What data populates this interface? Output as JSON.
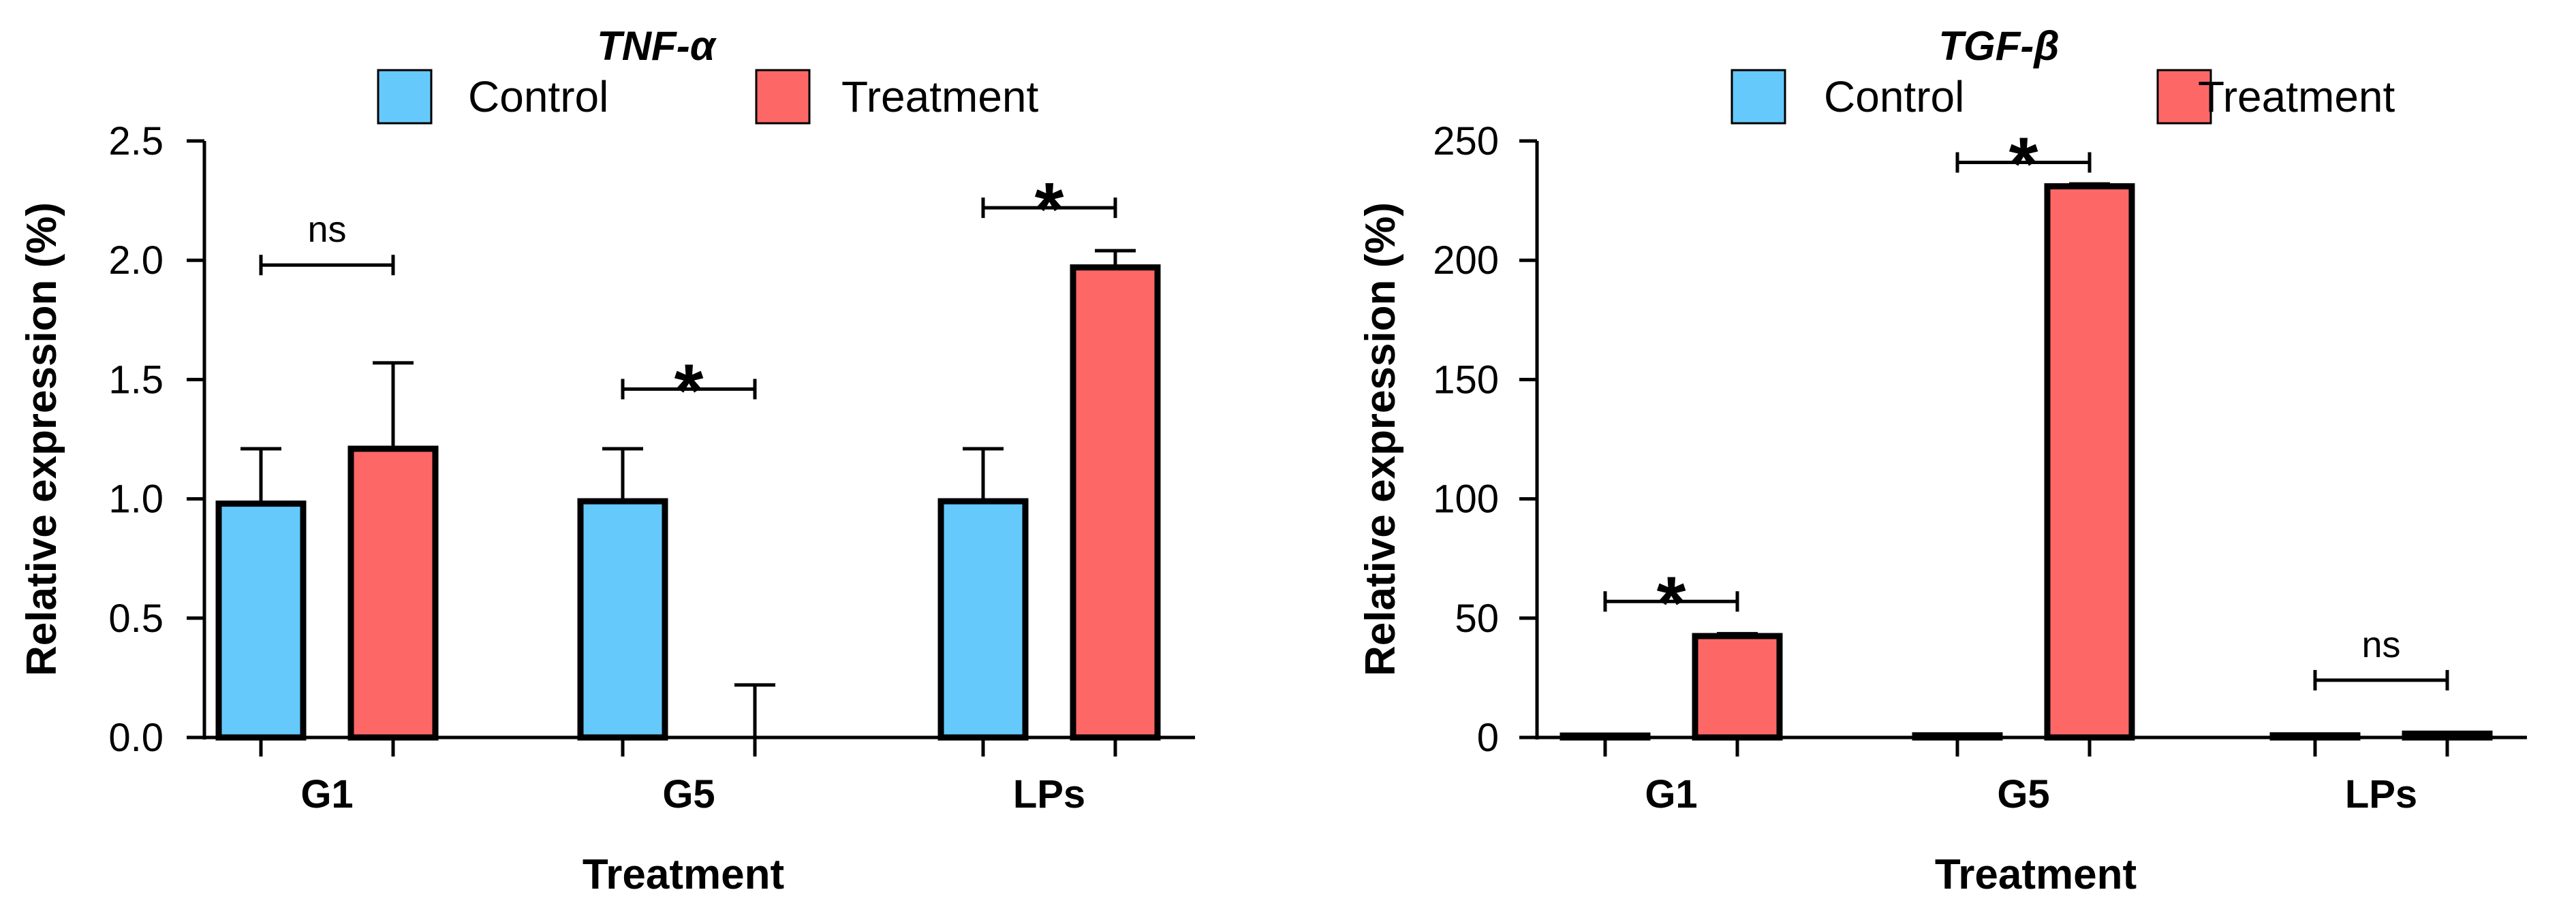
{
  "colors": {
    "control": "#66c9fb",
    "treatment": "#fd6867",
    "stroke": "#000000"
  },
  "legend": {
    "control": "Control",
    "treatment": "Treatment"
  },
  "chart_data": [
    {
      "type": "bar",
      "title": "TNF-α",
      "xlabel": "Treatment",
      "ylabel": "Relative expression (%)",
      "categories": [
        "G1",
        "G5",
        "LPs"
      ],
      "ylim": [
        0,
        2.5
      ],
      "yticks": [
        0.0,
        0.5,
        1.0,
        1.5,
        2.0,
        2.5
      ],
      "ytick_labels": [
        "0.0",
        "0.5",
        "1.0",
        "1.5",
        "2.0",
        "2.5"
      ],
      "series": [
        {
          "name": "Control",
          "values": [
            0.98,
            0.99,
            0.99
          ],
          "errors": [
            0.23,
            0.22,
            0.22
          ]
        },
        {
          "name": "Treatment",
          "values": [
            1.21,
            0.0,
            1.97
          ],
          "errors": [
            0.36,
            0.22,
            0.07
          ]
        }
      ],
      "significance": [
        {
          "category": "G1",
          "label": "ns",
          "value": 1.98
        },
        {
          "category": "G5",
          "label": "*",
          "value": 1.46
        },
        {
          "category": "LPs",
          "label": "*",
          "value": 2.22
        }
      ],
      "legend_position": "top"
    },
    {
      "type": "bar",
      "title": "TGF-β",
      "xlabel": "Treatment",
      "ylabel": "Relative expression (%)",
      "categories": [
        "G1",
        "G5",
        "LPs"
      ],
      "ylim": [
        0,
        250
      ],
      "yticks": [
        0,
        50,
        100,
        150,
        200,
        250
      ],
      "ytick_labels": [
        "0",
        "50",
        "100",
        "150",
        "200",
        "250"
      ],
      "series": [
        {
          "name": "Control",
          "values": [
            0.8,
            0.9,
            0.9
          ],
          "errors": [
            0.2,
            0.2,
            0.2
          ]
        },
        {
          "name": "Treatment",
          "values": [
            42.5,
            231.0,
            1.6
          ],
          "errors": [
            1.0,
            1.0,
            0.5
          ]
        }
      ],
      "significance": [
        {
          "category": "G1",
          "label": "*",
          "value": 57
        },
        {
          "category": "G5",
          "label": "*",
          "value": 241
        },
        {
          "category": "LPs",
          "label": "ns",
          "value": 24
        }
      ],
      "legend_position": "top"
    }
  ]
}
